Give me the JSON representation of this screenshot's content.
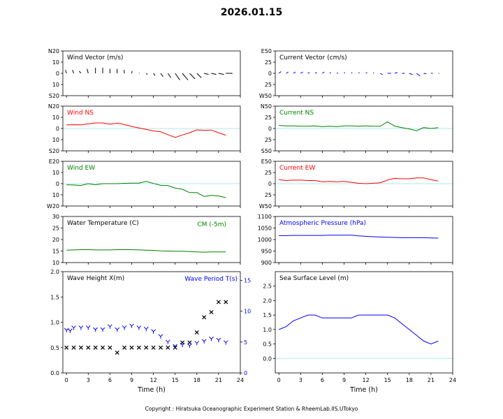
{
  "page": {
    "title": "2026.01.15",
    "copyright": "Copyright : Hiratsuka Oceanographic Experiment Station & RheemLab.IIS.UTokyo"
  },
  "colors": {
    "black": "#000000",
    "red": "#ff0000",
    "green": "#008000",
    "blue": "#0000ff",
    "zero": "#aee8ee"
  },
  "chart_data": [
    {
      "id": "wind_vector",
      "type": "line",
      "title": "Wind Vector (m/s)",
      "title_color": "#000000",
      "ylim": [
        -20,
        20
      ],
      "y_ticks": [
        {
          "v": 20,
          "l": "N20"
        },
        {
          "v": 10,
          "l": "10"
        },
        {
          "v": 0,
          "l": "0"
        },
        {
          "v": -10,
          "l": "10"
        },
        {
          "v": -20,
          "l": "S20"
        }
      ],
      "xlim": [
        -0.5,
        24
      ],
      "x_ticks": [
        0,
        3,
        6,
        9,
        12,
        15,
        18,
        21,
        24
      ],
      "show_x_labels": false,
      "x": [
        0,
        1,
        2,
        3,
        4,
        5,
        6,
        7,
        8,
        9,
        10,
        11,
        12,
        13,
        14,
        15,
        16,
        17,
        18,
        19,
        20,
        21,
        22
      ],
      "u": [
        -1,
        -1.2,
        -1.6,
        -1,
        0,
        0,
        0,
        -0.2,
        -0.4,
        0.5,
        0.5,
        1.1,
        1.5,
        2.2,
        2.7,
        4.2,
        5,
        4.8,
        4,
        4,
        4.4,
        4.8,
        6
      ],
      "v": [
        3,
        3,
        2,
        4,
        5,
        5,
        4,
        4,
        3,
        2,
        0,
        -1,
        -2,
        -3,
        -4,
        -6,
        -6,
        -5,
        -4,
        -1,
        -1,
        -1,
        0
      ],
      "color": "#000000"
    },
    {
      "id": "current_vector",
      "type": "line",
      "title": "Current Vector (cm/s)",
      "title_color": "#000000",
      "ylim": [
        -50,
        50
      ],
      "y_ticks": [
        {
          "v": 50,
          "l": "E50"
        },
        {
          "v": 25,
          "l": "25"
        },
        {
          "v": 0,
          "l": "0"
        },
        {
          "v": -25,
          "l": "25"
        },
        {
          "v": -50,
          "l": "W50"
        }
      ],
      "xlim": [
        -0.5,
        24
      ],
      "x_ticks": [
        0,
        3,
        6,
        9,
        12,
        15,
        18,
        21,
        24
      ],
      "show_x_labels": false,
      "x": [
        0,
        1,
        2,
        3,
        4,
        5,
        6,
        7,
        8,
        9,
        10,
        11,
        12,
        13,
        14,
        15,
        16,
        17,
        18,
        19,
        20,
        21,
        22
      ],
      "u": [
        5,
        5,
        5,
        5,
        4,
        4,
        4,
        3,
        3,
        2,
        2,
        2,
        3,
        2,
        5,
        8,
        6,
        6,
        8,
        8,
        6,
        4,
        2
      ],
      "v": [
        4,
        3,
        3,
        3,
        2,
        2,
        3,
        2,
        1,
        2,
        2,
        2,
        2,
        1,
        -3,
        0,
        2,
        0,
        -3,
        -6,
        -1,
        0,
        0
      ],
      "color": "#0000ff"
    },
    {
      "id": "wind_ns",
      "type": "line",
      "title": "Wind NS",
      "title_color": "#ff0000",
      "ylim": [
        -20,
        20
      ],
      "y_ticks": [
        {
          "v": 20,
          "l": "N20"
        },
        {
          "v": 10,
          "l": "10"
        },
        {
          "v": 0,
          "l": "0"
        },
        {
          "v": -10,
          "l": "10"
        },
        {
          "v": -20,
          "l": "S20"
        }
      ],
      "xlim": [
        -0.5,
        24
      ],
      "x_ticks": [
        0,
        3,
        6,
        9,
        12,
        15,
        18,
        21,
        24
      ],
      "show_x_labels": false,
      "series": [
        {
          "name": "Wind NS",
          "color": "#ff0000",
          "x": [
            0,
            1,
            2,
            3,
            4,
            5,
            6,
            7,
            8,
            9,
            10,
            11,
            12,
            13,
            14,
            15,
            16,
            17,
            18,
            19,
            20,
            21,
            22
          ],
          "values": [
            3.2,
            3.4,
            3.3,
            4.2,
            5,
            5,
            3.8,
            4.8,
            3.5,
            1.8,
            0.5,
            -0.8,
            -2.2,
            -3,
            -5.5,
            -8,
            -5.8,
            -3.8,
            -1.2,
            -1.6,
            -1.4,
            -3.8,
            -6
          ]
        }
      ],
      "zero_line": true
    },
    {
      "id": "current_ns",
      "type": "line",
      "title": "Current NS",
      "title_color": "#008000",
      "ylim": [
        -50,
        50
      ],
      "y_ticks": [
        {
          "v": 50,
          "l": "N50"
        },
        {
          "v": 25,
          "l": "25"
        },
        {
          "v": 0,
          "l": "0"
        },
        {
          "v": -25,
          "l": "25"
        },
        {
          "v": -50,
          "l": "S50"
        }
      ],
      "xlim": [
        -0.5,
        24
      ],
      "x_ticks": [
        0,
        3,
        6,
        9,
        12,
        15,
        18,
        21,
        24
      ],
      "show_x_labels": false,
      "series": [
        {
          "name": "Current NS",
          "color": "#008000",
          "x": [
            0,
            1,
            2,
            3,
            4,
            5,
            6,
            7,
            8,
            9,
            10,
            11,
            12,
            13,
            14,
            15,
            16,
            17,
            18,
            19,
            20,
            21,
            22
          ],
          "values": [
            7,
            6,
            6,
            5,
            5,
            6,
            4,
            5,
            4,
            6,
            6,
            5,
            6,
            5,
            5,
            15,
            5,
            2,
            -1,
            -5,
            2,
            0,
            2
          ]
        }
      ],
      "zero_line": true
    },
    {
      "id": "wind_ew",
      "type": "line",
      "title": "Wind EW",
      "title_color": "#008000",
      "ylim": [
        -20,
        20
      ],
      "y_ticks": [
        {
          "v": 20,
          "l": "E20"
        },
        {
          "v": 10,
          "l": "10"
        },
        {
          "v": 0,
          "l": "0"
        },
        {
          "v": -10,
          "l": "10"
        },
        {
          "v": -20,
          "l": "W20"
        }
      ],
      "xlim": [
        -0.5,
        24
      ],
      "x_ticks": [
        0,
        3,
        6,
        9,
        12,
        15,
        18,
        21,
        24
      ],
      "show_x_labels": false,
      "series": [
        {
          "name": "Wind EW",
          "color": "#008000",
          "x": [
            0,
            1,
            2,
            3,
            4,
            5,
            6,
            7,
            8,
            9,
            10,
            11,
            12,
            13,
            14,
            15,
            16,
            17,
            18,
            19,
            20,
            21,
            22
          ],
          "values": [
            -1,
            -1.2,
            -1.6,
            0,
            -1,
            0,
            0,
            0,
            0.3,
            0.5,
            0.5,
            2,
            0.2,
            -1.5,
            -1.6,
            -4,
            -5,
            -8,
            -8,
            -11.5,
            -10.5,
            -11,
            -12.5
          ]
        }
      ],
      "zero_line": true
    },
    {
      "id": "current_ew",
      "type": "line",
      "title": "Current EW",
      "title_color": "#ff0000",
      "ylim": [
        -50,
        50
      ],
      "y_ticks": [
        {
          "v": 50,
          "l": "E50"
        },
        {
          "v": 25,
          "l": "25"
        },
        {
          "v": 0,
          "l": "0"
        },
        {
          "v": -25,
          "l": "25"
        },
        {
          "v": -50,
          "l": "W50"
        }
      ],
      "xlim": [
        -0.5,
        24
      ],
      "x_ticks": [
        0,
        3,
        6,
        9,
        12,
        15,
        18,
        21,
        24
      ],
      "show_x_labels": false,
      "series": [
        {
          "name": "Current EW",
          "color": "#ff0000",
          "x": [
            0,
            1,
            2,
            3,
            4,
            5,
            6,
            7,
            8,
            9,
            10,
            11,
            12,
            13,
            14,
            15,
            16,
            17,
            18,
            19,
            20,
            21,
            22
          ],
          "values": [
            9,
            7,
            8,
            8,
            7,
            7,
            4,
            5,
            4,
            5,
            3,
            1,
            0,
            1,
            2,
            8,
            12,
            11,
            11,
            13,
            13,
            9,
            6
          ]
        }
      ],
      "zero_line": true
    },
    {
      "id": "water_temperature",
      "type": "line",
      "title": "Water Temperature (C)",
      "title_color": "#000000",
      "annotation": "CM (-5m)",
      "annotation_color": "#008000",
      "ylim": [
        10,
        30
      ],
      "y_ticks": [
        {
          "v": 30,
          "l": "30"
        },
        {
          "v": 25,
          "l": "25"
        },
        {
          "v": 20,
          "l": "20"
        },
        {
          "v": 15,
          "l": "15"
        },
        {
          "v": 10,
          "l": "10"
        }
      ],
      "xlim": [
        -0.5,
        24
      ],
      "x_ticks": [
        0,
        3,
        6,
        9,
        12,
        15,
        18,
        21,
        24
      ],
      "show_x_labels": false,
      "series": [
        {
          "name": "CM (-5m)",
          "color": "#008000",
          "x": [
            0,
            1,
            2,
            3,
            4,
            5,
            6,
            7,
            8,
            9,
            10,
            11,
            12,
            13,
            14,
            15,
            16,
            17,
            18,
            19,
            20,
            21,
            22
          ],
          "values": [
            15.4,
            15.5,
            15.6,
            15.6,
            15.5,
            15.5,
            15.5,
            15.6,
            15.6,
            15.6,
            15.5,
            15.4,
            15.3,
            15.1,
            15.0,
            14.9,
            14.9,
            14.8,
            14.6,
            14.5,
            14.6,
            14.6,
            14.6
          ]
        }
      ],
      "zero_line": false
    },
    {
      "id": "atmospheric_pressure",
      "type": "line",
      "title": "Atmospheric Pressure (hPa)",
      "title_color": "#0000ff",
      "ylim": [
        900,
        1100
      ],
      "y_ticks": [
        {
          "v": 1100,
          "l": "1100"
        },
        {
          "v": 1050,
          "l": "1050"
        },
        {
          "v": 1000,
          "l": "1000"
        },
        {
          "v": 950,
          "l": "950"
        },
        {
          "v": 900,
          "l": "900"
        }
      ],
      "xlim": [
        -0.5,
        24
      ],
      "x_ticks": [
        0,
        3,
        6,
        9,
        12,
        15,
        18,
        21,
        24
      ],
      "show_x_labels": false,
      "series": [
        {
          "name": "Atmospheric Pressure",
          "color": "#0000ff",
          "x": [
            0,
            1,
            2,
            3,
            4,
            5,
            6,
            7,
            8,
            9,
            10,
            11,
            12,
            13,
            14,
            15,
            16,
            17,
            18,
            19,
            20,
            21,
            22
          ],
          "values": [
            1017,
            1017,
            1018,
            1018,
            1018,
            1018,
            1018,
            1019,
            1019,
            1019,
            1019,
            1016,
            1014,
            1012,
            1011,
            1010,
            1009,
            1008,
            1008,
            1008,
            1008,
            1007,
            1006
          ]
        }
      ],
      "zero_line": false
    },
    {
      "id": "wave_height",
      "type": "scatter",
      "title": "Wave Height X(m)",
      "title_color": "#000000",
      "secondary_title": "Wave Period T(s)",
      "secondary_title_color": "#0000ff",
      "xlabel": "Time (h)",
      "ylim": [
        0,
        2
      ],
      "y_ticks": [
        {
          "v": 2,
          "l": "2.0"
        },
        {
          "v": 1.5,
          "l": "1.5"
        },
        {
          "v": 1,
          "l": "1.0"
        },
        {
          "v": 0.5,
          "l": "0.5"
        },
        {
          "v": 0,
          "l": "0.0"
        }
      ],
      "y2lim": [
        0,
        16.4
      ],
      "y2_ticks": [
        {
          "v": 15,
          "l": "15"
        },
        {
          "v": 10,
          "l": "10"
        },
        {
          "v": 5,
          "l": "5"
        },
        {
          "v": 0,
          "l": "0"
        }
      ],
      "xlim": [
        -0.5,
        24
      ],
      "x_ticks": [
        0,
        3,
        6,
        9,
        12,
        15,
        18,
        21,
        24
      ],
      "show_x_labels": true,
      "series": [
        {
          "name": "Wave Height",
          "axis": "left",
          "marker": "x",
          "color": "#000000",
          "x": [
            0,
            1,
            2,
            3,
            4,
            5,
            6,
            7,
            8,
            9,
            10,
            11,
            12,
            13,
            14,
            15,
            16,
            17,
            18,
            19,
            20,
            21,
            22
          ],
          "values": [
            0.5,
            0.5,
            0.5,
            0.5,
            0.5,
            0.5,
            0.5,
            0.4,
            0.5,
            0.5,
            0.5,
            0.5,
            0.5,
            0.5,
            0.5,
            0.5,
            0.6,
            0.6,
            0.8,
            1.1,
            1.2,
            1.4,
            1.4
          ]
        },
        {
          "name": "Wave Period",
          "axis": "right",
          "marker": "y",
          "color": "#0000ff",
          "x": [
            0,
            0.5,
            1,
            2,
            3,
            4,
            5,
            6,
            7,
            8,
            9,
            10,
            11,
            12,
            13,
            14,
            15,
            16,
            17,
            18,
            19,
            20,
            21,
            22
          ],
          "values": [
            6.9,
            6.8,
            7.3,
            7.3,
            7.3,
            7.0,
            7.0,
            7.5,
            7.0,
            7.3,
            7.6,
            7.3,
            7.1,
            6.7,
            5.9,
            5.0,
            4.3,
            4.5,
            4.4,
            4.8,
            5.1,
            5.5,
            5.3,
            4.9
          ]
        }
      ]
    },
    {
      "id": "sea_surface_level",
      "type": "line",
      "title": "Sea Surface Level (m)",
      "title_color": "#000000",
      "xlabel": "Time (h)",
      "ylim": [
        -0.5,
        3
      ],
      "y_ticks": [
        {
          "v": 2.5,
          "l": "2.5"
        },
        {
          "v": 2,
          "l": "2.0"
        },
        {
          "v": 1.5,
          "l": "1.5"
        },
        {
          "v": 1,
          "l": "1.0"
        },
        {
          "v": 0.5,
          "l": "0.5"
        },
        {
          "v": 0,
          "l": "0.0"
        }
      ],
      "xlim": [
        -0.5,
        24
      ],
      "x_ticks": [
        0,
        3,
        6,
        9,
        12,
        15,
        18,
        21,
        24
      ],
      "show_x_labels": true,
      "series": [
        {
          "name": "Sea Surface Level",
          "color": "#0000ff",
          "x": [
            0,
            1,
            2,
            3,
            4,
            5,
            6,
            7,
            8,
            9,
            10,
            11,
            12,
            13,
            14,
            15,
            16,
            17,
            18,
            19,
            20,
            21,
            22
          ],
          "values": [
            1.0,
            1.1,
            1.3,
            1.4,
            1.5,
            1.5,
            1.4,
            1.4,
            1.4,
            1.4,
            1.4,
            1.5,
            1.5,
            1.5,
            1.5,
            1.5,
            1.4,
            1.2,
            1.0,
            0.8,
            0.6,
            0.5,
            0.6
          ]
        }
      ],
      "zero_line": true
    }
  ]
}
